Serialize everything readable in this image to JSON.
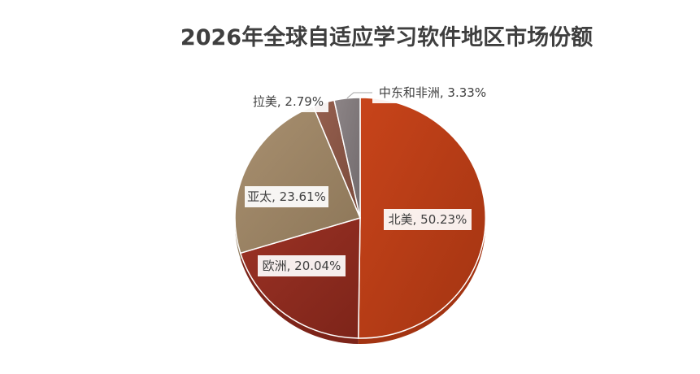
{
  "chart_data": {
    "type": "pie",
    "title": "2026年全球自适应学习软件地区市场份额",
    "start_angle_deg": 0,
    "direction": "clockwise",
    "slices": [
      {
        "name": "北美",
        "value": 50.23,
        "label": "北美, 50.23%",
        "color": "#c8441a",
        "color_dark": "#a33412"
      },
      {
        "name": "欧洲",
        "value": 20.04,
        "label": "欧洲, 20.04%",
        "color": "#9b3225",
        "color_dark": "#7d2419"
      },
      {
        "name": "亚太",
        "value": 23.61,
        "label": "亚太, 23.61%",
        "color": "#a99070",
        "color_dark": "#8c7658"
      },
      {
        "name": "拉美",
        "value": 2.79,
        "label": "拉美, 2.79%",
        "color": "#96604f",
        "color_dark": "#7a4a3b"
      },
      {
        "name": "中东和非洲",
        "value": 3.33,
        "label": "中东和非洲, 3.33%",
        "color": "#8d8587",
        "color_dark": "#716a6c"
      }
    ]
  }
}
